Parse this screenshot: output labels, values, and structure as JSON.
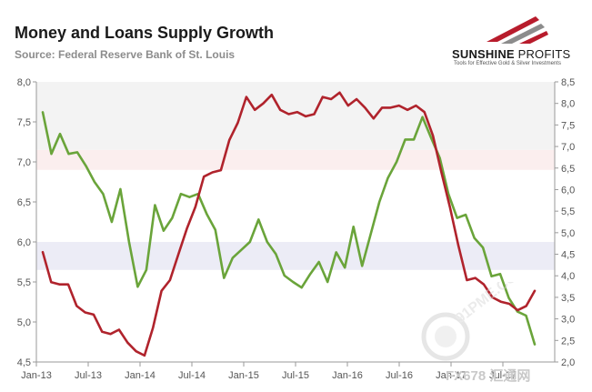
{
  "header": {
    "title": "Money and Loans Supply Growth",
    "subtitle": "Source: Federal Reserve Bank of St. Louis"
  },
  "logo": {
    "name_bold": "SUNSHINE",
    "name_light": " PROFITS",
    "tagline": "Tools for Effective Gold & Silver Investments",
    "colors": [
      "#b81c2c",
      "#8c8c8c",
      "#1a1a1a"
    ]
  },
  "watermark": {
    "text": "FX678 汇通网",
    "circle_text": "91PME.COM"
  },
  "chart_data": {
    "type": "line",
    "x_tick_labels": [
      "Jan-13",
      "Jul-13",
      "Jan-14",
      "Jul-14",
      "Jan-15",
      "Jul-15",
      "Jan-16",
      "Jul-16",
      "Jan-17",
      "Jul-17"
    ],
    "y_left": {
      "ticks": [
        "4,5",
        "5,0",
        "5,5",
        "6,0",
        "6,5",
        "7,0",
        "7,5",
        "8,0"
      ],
      "ylim": [
        4.5,
        8.0
      ]
    },
    "y_right": {
      "ticks": [
        "2,0",
        "2,5",
        "3,0",
        "3,5",
        "4,0",
        "4,5",
        "5,0",
        "5,5",
        "6,0",
        "6,5",
        "7,0",
        "7,5",
        "8,0",
        "8,5"
      ],
      "ylim": [
        2.0,
        8.5
      ]
    },
    "bands": [
      {
        "from": 5.65,
        "to": 6.0,
        "color": "#ececf6"
      },
      {
        "from": 6.9,
        "to": 7.15,
        "color": "#fbeeee"
      },
      {
        "from": 7.15,
        "to": 8.0,
        "color": "#f3f3f3"
      }
    ],
    "grid": false,
    "series": [
      {
        "color": "#b0232c",
        "axis": "right",
        "values": [
          4.55,
          3.85,
          3.8,
          3.8,
          3.3,
          3.15,
          3.1,
          2.7,
          2.65,
          2.75,
          2.45,
          2.25,
          2.15,
          2.8,
          3.65,
          3.9,
          4.5,
          5.1,
          5.6,
          6.3,
          6.4,
          6.45,
          7.15,
          7.55,
          8.15,
          7.85,
          8.0,
          8.2,
          7.85,
          7.75,
          7.8,
          7.7,
          7.75,
          8.15,
          8.1,
          8.25,
          7.95,
          8.1,
          7.9,
          7.65,
          7.9,
          7.9,
          7.95,
          7.85,
          7.95,
          7.8,
          7.25,
          6.4,
          5.6,
          4.7,
          3.9,
          3.95,
          3.8,
          3.5,
          3.4,
          3.35,
          3.2,
          3.3,
          3.65
        ]
      },
      {
        "color": "#6aa43a",
        "axis": "left",
        "values": [
          7.62,
          7.1,
          7.35,
          7.1,
          7.12,
          6.95,
          6.75,
          6.6,
          6.25,
          6.66,
          6.0,
          5.44,
          5.65,
          6.46,
          6.14,
          6.3,
          6.6,
          6.56,
          6.6,
          6.35,
          6.15,
          5.55,
          5.8,
          5.9,
          6.0,
          6.28,
          6.0,
          5.85,
          5.58,
          5.5,
          5.43,
          5.6,
          5.75,
          5.5,
          5.87,
          5.68,
          6.19,
          5.7,
          6.1,
          6.5,
          6.8,
          7.0,
          7.28,
          7.28,
          7.56,
          7.3,
          7.05,
          6.6,
          6.3,
          6.34,
          6.05,
          5.93,
          5.57,
          5.6,
          5.3,
          5.13,
          5.08,
          4.72
        ]
      }
    ]
  }
}
